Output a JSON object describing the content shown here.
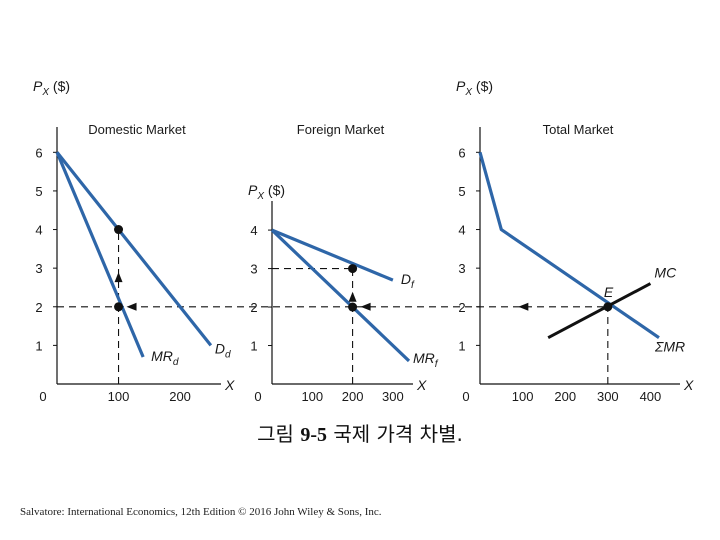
{
  "caption": {
    "prefix": "그림",
    "number": "9-5",
    "title": "국제 가격 차별."
  },
  "credit": "Salvatore: International Economics, 12th Edition © 2016 John Wiley & Sons, Inc.",
  "colors": {
    "curve": "#2e66a8",
    "mc": "#111111",
    "axis": "#111111",
    "guide": "#111111"
  },
  "chart_data": [
    {
      "type": "line",
      "title": "Domestic Market",
      "ylabel_main": "P",
      "ylabel_sub": "X",
      "ylabel_unit": " ($)",
      "xlabel": "X",
      "xlim": [
        0,
        260
      ],
      "ylim": [
        0,
        6.5
      ],
      "x_ticks": [
        0,
        100,
        200
      ],
      "y_ticks": [
        1,
        2,
        3,
        4,
        5,
        6
      ],
      "x_tick_labels": [
        "0",
        "100",
        "200"
      ],
      "y_tick_labels": [
        "1",
        "2",
        "3",
        "4",
        "5",
        "6"
      ],
      "series": [
        {
          "name": "D",
          "sub": "d",
          "role": "demand",
          "points": [
            [
              0,
              6
            ],
            [
              250,
              1
            ]
          ]
        },
        {
          "name": "MR",
          "sub": "d",
          "role": "marginal-revenue",
          "points": [
            [
              0,
              6
            ],
            [
              140,
              0.7
            ]
          ]
        }
      ],
      "points": [
        [
          100,
          4
        ],
        [
          100,
          2
        ]
      ],
      "guides": [
        {
          "from": [
            100,
            0
          ],
          "to": [
            100,
            4
          ],
          "arrow": "up"
        },
        {
          "from": [
            0,
            2
          ],
          "to": [
            260,
            2
          ],
          "arrow": "left-at-mr"
        }
      ]
    },
    {
      "type": "line",
      "title": "Foreign Market",
      "ylabel_main": "P",
      "ylabel_sub": "X",
      "ylabel_unit": " ($)",
      "xlabel": "X",
      "xlim": [
        0,
        340
      ],
      "ylim": [
        0,
        4.6
      ],
      "x_ticks": [
        0,
        100,
        200,
        300
      ],
      "y_ticks": [
        1,
        2,
        3,
        4
      ],
      "x_tick_labels": [
        "0",
        "100",
        "200",
        "300"
      ],
      "y_tick_labels": [
        "1",
        "2",
        "3",
        "4"
      ],
      "series": [
        {
          "name": "D",
          "sub": "f",
          "role": "demand",
          "points": [
            [
              0,
              4
            ],
            [
              300,
              2.7
            ]
          ]
        },
        {
          "name": "MR",
          "sub": "f",
          "role": "marginal-revenue",
          "points": [
            [
              0,
              4
            ],
            [
              340,
              0.6
            ]
          ]
        }
      ],
      "points": [
        [
          200,
          3
        ],
        [
          200,
          2
        ]
      ],
      "guides": [
        {
          "from": [
            0,
            3
          ],
          "to": [
            200,
            3
          ]
        },
        {
          "from": [
            200,
            0
          ],
          "to": [
            200,
            3
          ],
          "arrow": "up"
        },
        {
          "from": [
            0,
            2
          ],
          "to": [
            340,
            2
          ],
          "arrow": "left-at-mr"
        }
      ]
    },
    {
      "type": "line",
      "title": "Total Market",
      "ylabel_main": "P",
      "ylabel_sub": "X",
      "ylabel_unit": " ($)",
      "xlabel": "X",
      "xlim": [
        0,
        460
      ],
      "ylim": [
        0,
        6.5
      ],
      "x_ticks": [
        0,
        100,
        200,
        300,
        400
      ],
      "y_ticks": [
        1,
        2,
        3,
        4,
        5,
        6
      ],
      "x_tick_labels": [
        "0",
        "100",
        "200",
        "300",
        "400"
      ],
      "y_tick_labels": [
        "1",
        "2",
        "3",
        "4",
        "5",
        "6"
      ],
      "series": [
        {
          "name": "ΣMR",
          "sub": "",
          "role": "marginal-revenue",
          "points": [
            [
              0,
              6
            ],
            [
              50,
              4
            ],
            [
              420,
              1.2
            ]
          ]
        },
        {
          "name": "MC",
          "sub": "",
          "role": "marginal-cost",
          "points": [
            [
              160,
              1.2
            ],
            [
              400,
              2.6
            ]
          ]
        }
      ],
      "points": [
        [
          300,
          2
        ]
      ],
      "point_label": "E",
      "guides": [
        {
          "from": [
            300,
            0
          ],
          "to": [
            300,
            2
          ]
        },
        {
          "from": [
            0,
            2
          ],
          "to": [
            300,
            2
          ],
          "arrow": "left"
        }
      ]
    }
  ]
}
